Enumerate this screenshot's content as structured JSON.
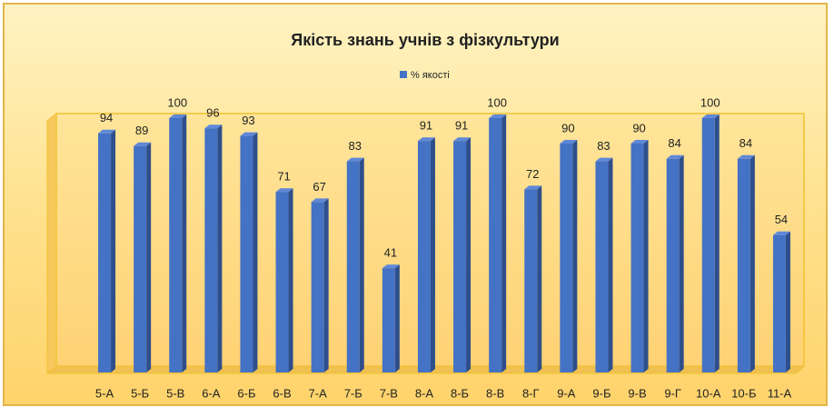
{
  "chart_data": {
    "type": "bar3d",
    "title": "Якість знань учнів з фізкультури",
    "categories": [
      "5-А",
      "5-Б",
      "5-В",
      "6-А",
      "6-Б",
      "6-В",
      "7-А",
      "7-Б",
      "7-В",
      "8-А",
      "8-Б",
      "8-В",
      "8-Г",
      "9-А",
      "9-Б",
      "9-В",
      "9-Г",
      "10-А",
      "10-Б",
      "11-А"
    ],
    "series": [
      {
        "name": "% якості",
        "color": "#4472c4",
        "values": [
          94,
          89,
          100,
          96,
          93,
          71,
          67,
          83,
          41,
          91,
          91,
          100,
          72,
          90,
          83,
          90,
          84,
          100,
          84,
          54
        ]
      }
    ],
    "ylim": [
      0,
      100
    ],
    "legend": "top",
    "grid": false
  }
}
